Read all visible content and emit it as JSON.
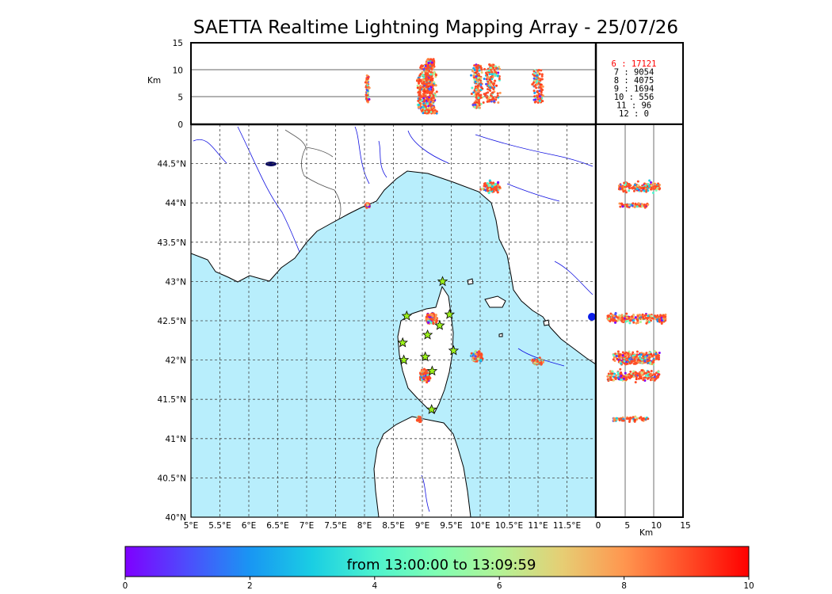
{
  "title": "SAETTA Realtime Lightning Mapping Array - 25/07/26",
  "axes": {
    "top_ylabel": "Km",
    "right_xlabel": "Km",
    "top_yticks": [
      "15",
      "10",
      "5",
      "0"
    ],
    "right_xticks": [
      "0",
      "5",
      "10",
      "15"
    ],
    "lon_ticks": [
      "5°E",
      "5.5°E",
      "6°E",
      "6.5°E",
      "7°E",
      "7.5°E",
      "8°E",
      "8.5°E",
      "9°E",
      "9.5°E",
      "10°E",
      "10.5°E",
      "11°E",
      "11.5°E"
    ],
    "lat_ticks": [
      "44.5°N",
      "44°N",
      "43.5°N",
      "43°N",
      "42.5°N",
      "42°N",
      "41.5°N",
      "41°N",
      "40.5°N",
      "40°N"
    ]
  },
  "legend": {
    "rows": [
      {
        "stations": "6",
        "count": "17121",
        "highlight": true
      },
      {
        "stations": "7",
        "count": "9054",
        "highlight": false
      },
      {
        "stations": "8",
        "count": "4075",
        "highlight": false
      },
      {
        "stations": "9",
        "count": "1694",
        "highlight": false
      },
      {
        "stations": "10",
        "count": "556",
        "highlight": false
      },
      {
        "stations": "11",
        "count": "96",
        "highlight": false
      },
      {
        "stations": "12",
        "count": "0",
        "highlight": false
      }
    ]
  },
  "colorbar": {
    "label": "from 13:00:00 to 13:09:59",
    "ticks": [
      "0",
      "2",
      "4",
      "6",
      "8",
      "10"
    ]
  },
  "chart_data": {
    "type": "scatter",
    "title": "SAETTA Realtime Lightning Mapping Array - 25/07/26",
    "lon_range": [
      5,
      12
    ],
    "lat_range": [
      40,
      45
    ],
    "alt_range_km": [
      0,
      15
    ],
    "color_scale_range": [
      0,
      10
    ],
    "stations": [
      {
        "lon": 9.35,
        "lat": 43.0
      },
      {
        "lon": 8.73,
        "lat": 42.56
      },
      {
        "lon": 9.47,
        "lat": 42.58
      },
      {
        "lon": 9.3,
        "lat": 42.44
      },
      {
        "lon": 9.09,
        "lat": 42.32
      },
      {
        "lon": 8.66,
        "lat": 42.22
      },
      {
        "lon": 9.54,
        "lat": 42.12
      },
      {
        "lon": 9.05,
        "lat": 42.04
      },
      {
        "lon": 8.68,
        "lat": 42.0
      },
      {
        "lon": 9.17,
        "lat": 41.86
      },
      {
        "lon": 9.16,
        "lat": 41.37
      }
    ],
    "clusters": [
      {
        "lon": 10.2,
        "lat": 44.2,
        "alt_km": [
          4,
          11
        ]
      },
      {
        "lon": 8.05,
        "lat": 43.97,
        "alt_km": [
          4,
          9
        ]
      },
      {
        "lon": 9.15,
        "lat": 42.53,
        "alt_km": [
          2,
          12
        ]
      },
      {
        "lon": 9.05,
        "lat": 41.8,
        "alt_km": [
          2,
          11
        ]
      },
      {
        "lon": 9.95,
        "lat": 42.05,
        "alt_km": [
          3,
          11
        ]
      },
      {
        "lon": 11.0,
        "lat": 41.98,
        "alt_km": [
          4,
          10
        ]
      },
      {
        "lon": 8.95,
        "lat": 41.25,
        "alt_km": [
          3,
          9
        ]
      }
    ]
  }
}
